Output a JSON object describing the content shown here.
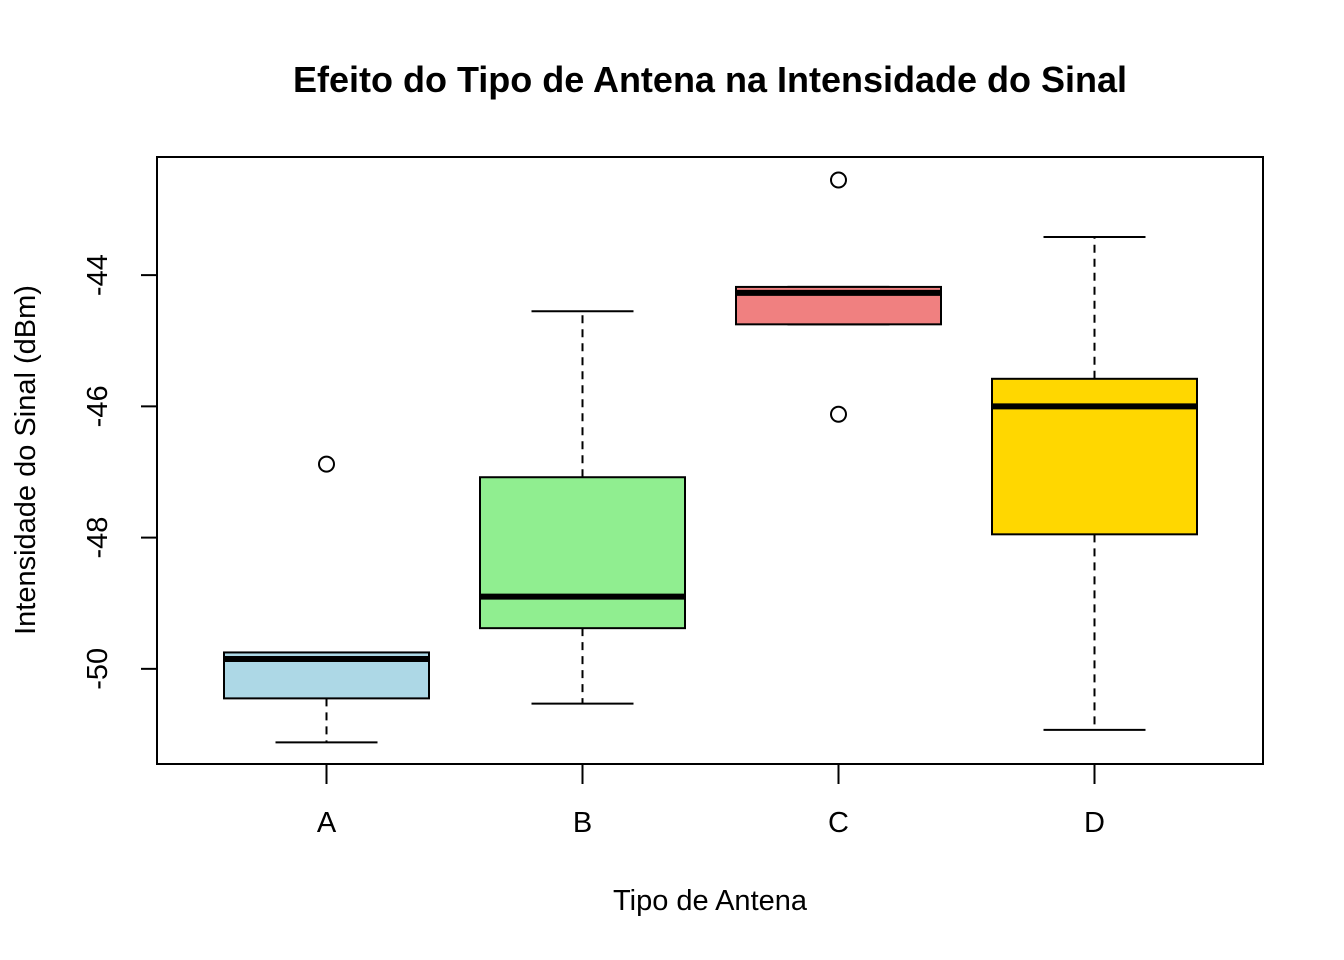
{
  "chart_data": {
    "type": "boxplot",
    "title": "Efeito do Tipo de Antena na Intensidade do Sinal",
    "xlabel": "Tipo de Antena",
    "ylabel": "Intensidade do Sinal (dBm)",
    "ylim": [
      -51.45,
      -42.2
    ],
    "yticks": [
      -50,
      -48,
      -46,
      -44
    ],
    "ytick_labels": [
      "-50",
      "-48",
      "-46",
      "-44"
    ],
    "categories": [
      "A",
      "B",
      "C",
      "D"
    ],
    "boxes": [
      {
        "category": "A",
        "color": "#add8e6",
        "whisker_low": -51.12,
        "q1": -50.45,
        "median": -49.85,
        "q3": -49.75,
        "whisker_high": -49.75,
        "outliers": [
          -46.88
        ]
      },
      {
        "category": "B",
        "color": "#90ee90",
        "whisker_low": -50.53,
        "q1": -49.38,
        "median": -48.9,
        "q3": -47.08,
        "whisker_high": -44.55,
        "outliers": []
      },
      {
        "category": "C",
        "color": "#f08080",
        "whisker_low": -44.75,
        "q1": -44.75,
        "median": -44.27,
        "q3": -44.18,
        "whisker_high": -44.18,
        "outliers": [
          -42.55,
          -46.12
        ]
      },
      {
        "category": "D",
        "color": "#ffd700",
        "whisker_low": -50.93,
        "q1": -47.95,
        "median": -46.0,
        "q3": -45.58,
        "whisker_high": -43.42,
        "outliers": []
      }
    ]
  }
}
